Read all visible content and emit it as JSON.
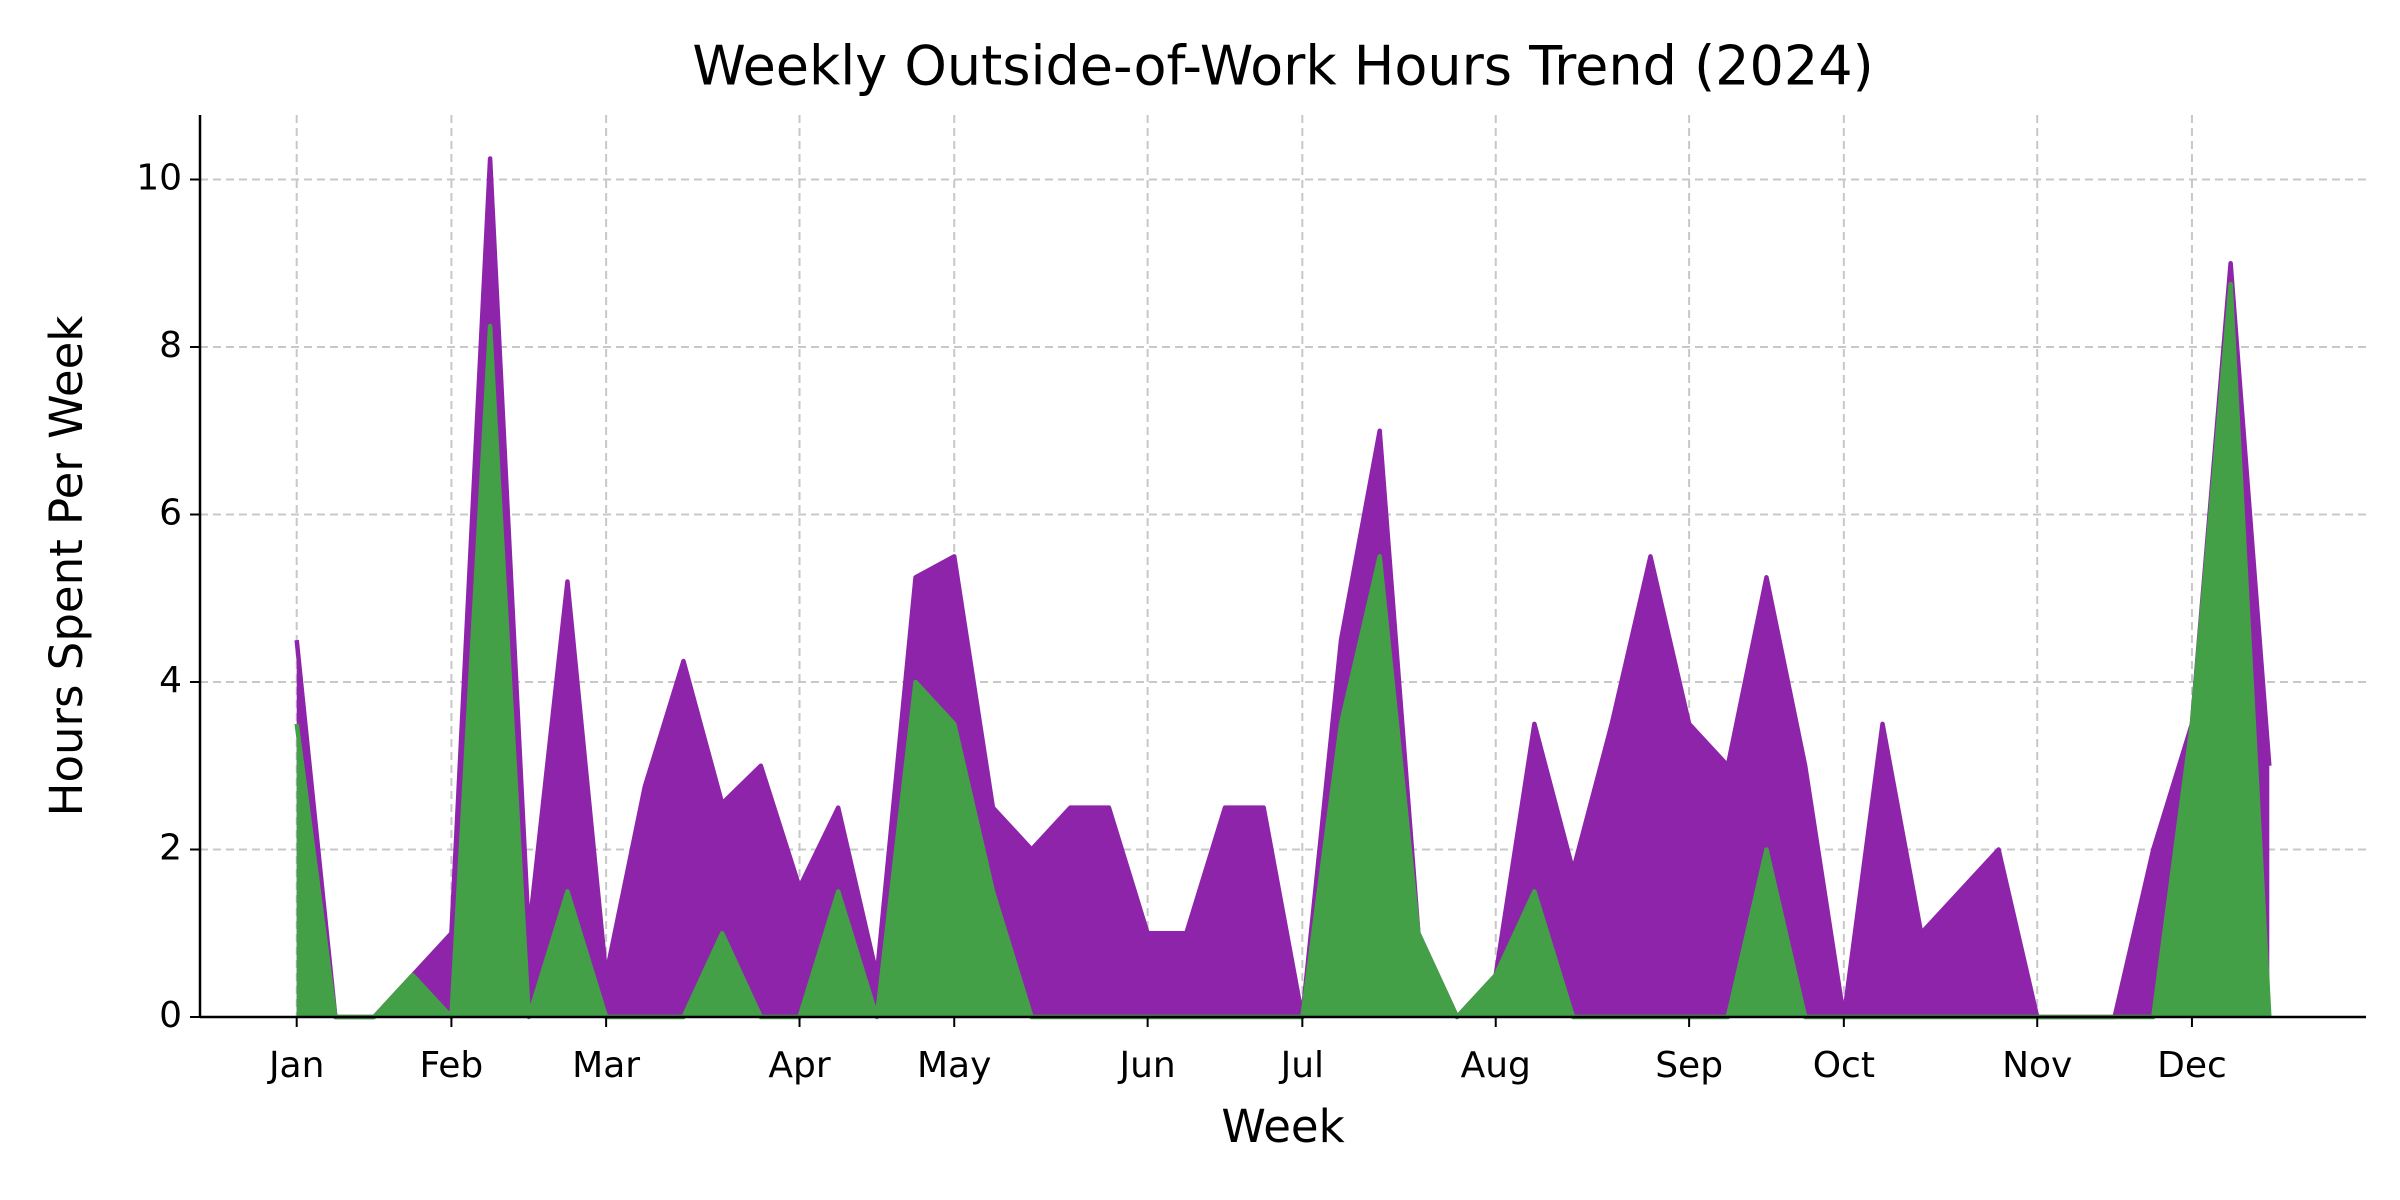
{
  "chart_data": {
    "type": "area",
    "title": "Weekly Outside-of-Work Hours Trend (2024)",
    "xlabel": "Week",
    "ylabel": "Hours Spent Per Week",
    "categories": [
      "Jan",
      null,
      null,
      null,
      "Feb",
      null,
      null,
      null,
      "Mar",
      null,
      null,
      null,
      null,
      "Apr",
      null,
      null,
      null,
      "May",
      null,
      null,
      null,
      null,
      "Jun",
      null,
      null,
      null,
      "Jul",
      null,
      null,
      null,
      null,
      "Aug",
      null,
      null,
      null,
      null,
      "Sep",
      null,
      null,
      null,
      "Oct",
      null,
      null,
      null,
      null,
      "Nov",
      null,
      null,
      null,
      "Dec",
      null,
      null
    ],
    "series": [
      {
        "color": "#8e24aa",
        "values": [
          4.5,
          0,
          0,
          0.5,
          1.0,
          10.25,
          1.0,
          5.2,
          0.5,
          2.75,
          4.25,
          2.55,
          3.0,
          1.55,
          2.5,
          0.5,
          5.25,
          5.5,
          2.5,
          2.0,
          2.5,
          2.5,
          1.0,
          1.0,
          2.5,
          2.5,
          0,
          4.5,
          7.0,
          1.0,
          0,
          0.5,
          3.5,
          1.75,
          3.5,
          5.5,
          3.5,
          3.0,
          5.25,
          3.0,
          0,
          3.5,
          1.0,
          1.5,
          2.0,
          0,
          0,
          0,
          2.0,
          3.5,
          9.0,
          3.0
        ]
      },
      {
        "color": "#43a047",
        "values": [
          3.5,
          0,
          0,
          0.5,
          0,
          8.25,
          0,
          1.5,
          0,
          0,
          0,
          1.0,
          0,
          0,
          1.5,
          0,
          4.0,
          3.5,
          1.5,
          0,
          0,
          0,
          0,
          0,
          0,
          0,
          0,
          3.5,
          5.5,
          1.0,
          0,
          0.5,
          1.5,
          0,
          0,
          0,
          0,
          0,
          2.0,
          0,
          0,
          0,
          0,
          0,
          0,
          0,
          0,
          0,
          0,
          3.5,
          8.75,
          0
        ]
      }
    ],
    "ylim": [
      0,
      10.77
    ],
    "yticks": [
      0,
      2,
      4,
      6,
      8,
      10
    ],
    "grid": true
  }
}
